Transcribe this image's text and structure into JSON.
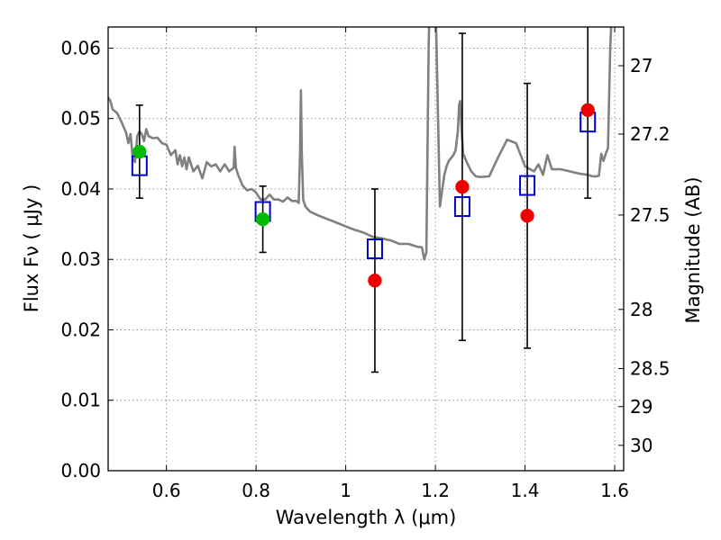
{
  "chart_data": {
    "type": "scatter",
    "title": "",
    "xlabel": "Wavelength  λ (μm)",
    "ylabel": "Flux  Fν  ( μJy )",
    "y2label": "Magnitude (AB)",
    "xlim": [
      0.47,
      1.62
    ],
    "ylim": [
      0.0,
      0.063
    ],
    "grid": true,
    "x_ticks": [
      0.6,
      0.8,
      1.0,
      1.2,
      1.4,
      1.6
    ],
    "x_tick_labels": [
      "0.6",
      "0.8",
      "1",
      "1.2",
      "1.4",
      "1.6"
    ],
    "y_ticks": [
      0.0,
      0.01,
      0.02,
      0.03,
      0.04,
      0.05,
      0.06
    ],
    "y_tick_labels": [
      "0.00",
      "0.01",
      "0.02",
      "0.03",
      "0.04",
      "0.05",
      "0.06"
    ],
    "y2_ticks": [
      {
        "label": "27",
        "flux": 0.0575
      },
      {
        "label": "27.2",
        "flux": 0.0478
      },
      {
        "label": "27.5",
        "flux": 0.0363
      },
      {
        "label": "28",
        "flux": 0.0229
      },
      {
        "label": "28.5",
        "flux": 0.0145
      },
      {
        "label": "29",
        "flux": 0.0091
      },
      {
        "label": "30",
        "flux": 0.0036
      }
    ],
    "colors": {
      "model": "#808080",
      "model_box": "#0000cc",
      "obs_green": "#00bb00",
      "obs_red": "#ee0000",
      "errorbar": "#000000"
    },
    "series": [
      {
        "name": "model spectrum",
        "style": "line",
        "x": [
          0.47,
          0.475,
          0.48,
          0.49,
          0.5,
          0.51,
          0.515,
          0.52,
          0.525,
          0.53,
          0.535,
          0.54,
          0.545,
          0.55,
          0.555,
          0.56,
          0.57,
          0.58,
          0.59,
          0.6,
          0.61,
          0.62,
          0.625,
          0.63,
          0.635,
          0.64,
          0.645,
          0.65,
          0.66,
          0.67,
          0.68,
          0.69,
          0.7,
          0.71,
          0.72,
          0.73,
          0.74,
          0.75,
          0.752,
          0.755,
          0.76,
          0.77,
          0.78,
          0.79,
          0.8,
          0.81,
          0.82,
          0.83,
          0.84,
          0.85,
          0.86,
          0.87,
          0.88,
          0.89,
          0.895,
          0.898,
          0.9,
          0.902,
          0.905,
          0.91,
          0.92,
          0.93,
          0.94,
          0.96,
          0.98,
          1.0,
          1.02,
          1.04,
          1.06,
          1.08,
          1.1,
          1.12,
          1.14,
          1.16,
          1.17,
          1.175,
          1.18,
          1.185,
          1.19,
          1.2,
          1.21,
          1.22,
          1.225,
          1.23,
          1.24,
          1.245,
          1.25,
          1.253,
          1.255,
          1.258,
          1.262,
          1.27,
          1.28,
          1.29,
          1.3,
          1.32,
          1.34,
          1.36,
          1.38,
          1.4,
          1.42,
          1.43,
          1.44,
          1.45,
          1.46,
          1.48,
          1.5,
          1.52,
          1.54,
          1.55,
          1.56,
          1.565,
          1.57,
          1.575,
          1.58,
          1.585,
          1.59,
          1.6
        ],
        "y": [
          0.053,
          0.0525,
          0.0513,
          0.0508,
          0.0495,
          0.048,
          0.0465,
          0.0478,
          0.0442,
          0.0438,
          0.0475,
          0.0482,
          0.0478,
          0.0468,
          0.0485,
          0.0475,
          0.0472,
          0.0473,
          0.0465,
          0.0463,
          0.0448,
          0.0455,
          0.0435,
          0.0448,
          0.0432,
          0.0445,
          0.0428,
          0.0445,
          0.0425,
          0.0433,
          0.0415,
          0.0438,
          0.0432,
          0.0435,
          0.0425,
          0.0435,
          0.0425,
          0.043,
          0.046,
          0.043,
          0.042,
          0.0405,
          0.0398,
          0.04,
          0.0395,
          0.0385,
          0.0385,
          0.0392,
          0.0385,
          0.0385,
          0.0382,
          0.0388,
          0.0383,
          0.0383,
          0.038,
          0.045,
          0.054,
          0.045,
          0.0385,
          0.0375,
          0.0368,
          0.0365,
          0.0362,
          0.0357,
          0.0352,
          0.0347,
          0.0342,
          0.0338,
          0.0332,
          0.033,
          0.0327,
          0.0322,
          0.0322,
          0.0318,
          0.0317,
          0.03,
          0.031,
          0.06,
          0.075,
          0.068,
          0.0375,
          0.042,
          0.0432,
          0.044,
          0.0448,
          0.0455,
          0.0482,
          0.052,
          0.0525,
          0.049,
          0.045,
          0.0438,
          0.0425,
          0.0418,
          0.0417,
          0.0418,
          0.0445,
          0.047,
          0.0465,
          0.0432,
          0.0425,
          0.0435,
          0.042,
          0.0448,
          0.0428,
          0.0428,
          0.0425,
          0.0422,
          0.042,
          0.0418,
          0.0418,
          0.0419,
          0.045,
          0.044,
          0.045,
          0.0458,
          0.06,
          0.075
        ]
      },
      {
        "name": "model photometry",
        "style": "open-square",
        "x": [
          0.54,
          0.815,
          1.065,
          1.26,
          1.405,
          1.54
        ],
        "y": [
          0.0433,
          0.0368,
          0.0315,
          0.0375,
          0.0405,
          0.0495
        ]
      },
      {
        "name": "observed (green)",
        "style": "filled-circle",
        "x": [
          0.54,
          0.815
        ],
        "y": [
          0.0453,
          0.0357
        ],
        "yerr": [
          0.0066,
          0.0047
        ]
      },
      {
        "name": "observed (red)",
        "style": "filled-circle",
        "x": [
          1.065,
          1.26,
          1.405,
          1.54
        ],
        "y": [
          0.027,
          0.0403,
          0.0362,
          0.0512
        ],
        "yerr": [
          0.013,
          0.0218,
          0.0188,
          0.0125
        ],
        "yerr_upper_clipped": [
          false,
          false,
          false,
          true
        ]
      }
    ]
  }
}
